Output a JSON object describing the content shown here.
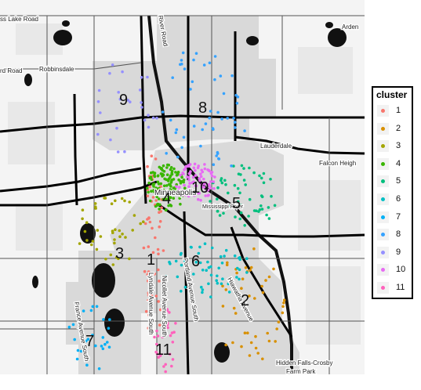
{
  "legend": {
    "title": "cluster",
    "items": [
      {
        "label": "1",
        "color": "#F8766D"
      },
      {
        "label": "2",
        "color": "#D89000"
      },
      {
        "label": "3",
        "color": "#A3A500"
      },
      {
        "label": "4",
        "color": "#39B600"
      },
      {
        "label": "5",
        "color": "#00BF7D"
      },
      {
        "label": "6",
        "color": "#00BFC4"
      },
      {
        "label": "7",
        "color": "#00B0F6"
      },
      {
        "label": "8",
        "color": "#35A2FF"
      },
      {
        "label": "9",
        "color": "#9590FF"
      },
      {
        "label": "10",
        "color": "#E76BF3"
      },
      {
        "label": "11",
        "color": "#FF62BC"
      }
    ]
  },
  "map_labels": {
    "lake_road": "ss Lake Road",
    "rd_road": "rd Road",
    "robbinsdale": "Robbinsdale",
    "river_road": "River Road",
    "arden": "Arden",
    "lauderdale": "Lauderdale",
    "falcon_heights": "Falcon Heigh",
    "minneapolis": "Minneapolis",
    "mississippi": "Mississippi River",
    "lyndale": "Lyndale Avenue South",
    "nicollet": "Nicollet Avenue South",
    "portland": "Portland Avenue South",
    "hiawatha": "Hiawatha Avenue",
    "france": "France Avenue South",
    "hidden_falls": "Hidden Falls-Crosby",
    "farm_park": "Farm Park"
  },
  "cluster_labels": [
    "1",
    "2",
    "3",
    "4",
    "5",
    "6",
    "7",
    "8",
    "9",
    "10",
    "11"
  ]
}
